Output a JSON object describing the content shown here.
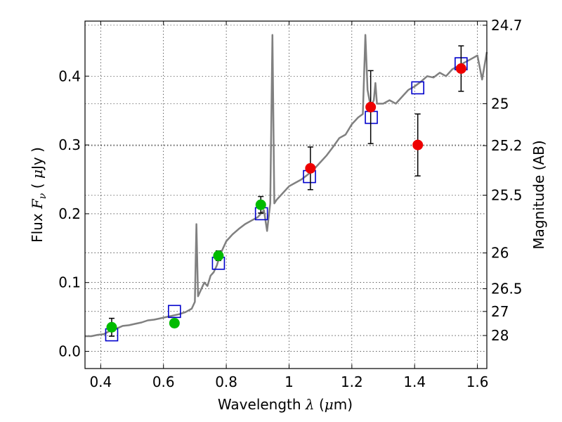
{
  "chart_data": {
    "type": "scatter",
    "xlabel": {
      "prefix": "Wavelength  ",
      "symbol": "λ",
      "mid": " (",
      "mu": "μ",
      "unit": "m)"
    },
    "ylabel": {
      "prefix": "Flux  ",
      "symbol": "F",
      "sub": "ν",
      "mid": "  ( ",
      "mu": "μ",
      "unit": "Jy )"
    },
    "y2label": "Magnitude (AB)",
    "xlim": [
      0.35,
      1.63
    ],
    "ylim": [
      -0.025,
      0.48
    ],
    "grid": true,
    "x_ticks": [
      0.4,
      0.6,
      0.8,
      1.0,
      1.2,
      1.4,
      1.6
    ],
    "x_tick_labels": [
      "0.4",
      "0.6",
      "0.8",
      "1",
      "1.2",
      "1.4",
      "1.6"
    ],
    "y_ticks": [
      0.0,
      0.1,
      0.2,
      0.3,
      0.4
    ],
    "y_tick_labels": [
      "0.0",
      "0.1",
      "0.2",
      "0.3",
      "0.4"
    ],
    "y2_ticks": [
      {
        "label": "24.7",
        "flux": 0.474
      },
      {
        "label": "25",
        "flux": 0.36
      },
      {
        "label": "25.2",
        "flux": 0.299
      },
      {
        "label": "25.5",
        "flux": 0.227
      },
      {
        "label": "26",
        "flux": 0.143
      },
      {
        "label": "26.5",
        "flux": 0.091
      },
      {
        "label": "27",
        "flux": 0.058
      },
      {
        "label": "28",
        "flux": 0.023
      }
    ],
    "template_spectrum": {
      "color": "#808080",
      "points": [
        [
          0.35,
          0.022
        ],
        [
          0.37,
          0.022
        ],
        [
          0.39,
          0.024
        ],
        [
          0.41,
          0.025
        ],
        [
          0.43,
          0.03
        ],
        [
          0.45,
          0.033
        ],
        [
          0.47,
          0.037
        ],
        [
          0.49,
          0.038
        ],
        [
          0.51,
          0.04
        ],
        [
          0.53,
          0.042
        ],
        [
          0.55,
          0.045
        ],
        [
          0.57,
          0.046
        ],
        [
          0.59,
          0.048
        ],
        [
          0.61,
          0.05
        ],
        [
          0.63,
          0.052
        ],
        [
          0.65,
          0.054
        ],
        [
          0.67,
          0.057
        ],
        [
          0.69,
          0.062
        ],
        [
          0.7,
          0.072
        ],
        [
          0.705,
          0.185
        ],
        [
          0.71,
          0.08
        ],
        [
          0.72,
          0.09
        ],
        [
          0.73,
          0.1
        ],
        [
          0.74,
          0.095
        ],
        [
          0.75,
          0.11
        ],
        [
          0.76,
          0.115
        ],
        [
          0.77,
          0.125
        ],
        [
          0.78,
          0.14
        ],
        [
          0.79,
          0.15
        ],
        [
          0.8,
          0.16
        ],
        [
          0.82,
          0.17
        ],
        [
          0.84,
          0.178
        ],
        [
          0.86,
          0.185
        ],
        [
          0.88,
          0.19
        ],
        [
          0.9,
          0.195
        ],
        [
          0.92,
          0.205
        ],
        [
          0.93,
          0.175
        ],
        [
          0.94,
          0.215
        ],
        [
          0.947,
          0.46
        ],
        [
          0.953,
          0.215
        ],
        [
          0.96,
          0.22
        ],
        [
          0.98,
          0.23
        ],
        [
          1.0,
          0.24
        ],
        [
          1.02,
          0.245
        ],
        [
          1.04,
          0.25
        ],
        [
          1.06,
          0.257
        ],
        [
          1.08,
          0.265
        ],
        [
          1.1,
          0.275
        ],
        [
          1.12,
          0.285
        ],
        [
          1.14,
          0.297
        ],
        [
          1.16,
          0.31
        ],
        [
          1.18,
          0.315
        ],
        [
          1.2,
          0.33
        ],
        [
          1.22,
          0.34
        ],
        [
          1.235,
          0.345
        ],
        [
          1.243,
          0.46
        ],
        [
          1.25,
          0.38
        ],
        [
          1.26,
          0.355
        ],
        [
          1.27,
          0.365
        ],
        [
          1.275,
          0.39
        ],
        [
          1.28,
          0.36
        ],
        [
          1.3,
          0.36
        ],
        [
          1.32,
          0.365
        ],
        [
          1.34,
          0.36
        ],
        [
          1.36,
          0.37
        ],
        [
          1.38,
          0.38
        ],
        [
          1.4,
          0.385
        ],
        [
          1.42,
          0.392
        ],
        [
          1.44,
          0.4
        ],
        [
          1.46,
          0.398
        ],
        [
          1.48,
          0.405
        ],
        [
          1.5,
          0.4
        ],
        [
          1.52,
          0.41
        ],
        [
          1.54,
          0.415
        ],
        [
          1.56,
          0.42
        ],
        [
          1.58,
          0.425
        ],
        [
          1.6,
          0.43
        ],
        [
          1.615,
          0.395
        ],
        [
          1.63,
          0.435
        ]
      ]
    },
    "model_photometry": {
      "marker": "open-square",
      "color": "#0000cc",
      "points": [
        [
          0.435,
          0.024
        ],
        [
          0.635,
          0.058
        ],
        [
          0.775,
          0.128
        ],
        [
          0.912,
          0.2
        ],
        [
          1.065,
          0.254
        ],
        [
          1.262,
          0.34
        ],
        [
          1.41,
          0.383
        ],
        [
          1.548,
          0.418
        ]
      ]
    },
    "observed_optical": {
      "marker": "filled-circle",
      "color": "#00bb00",
      "points": [
        {
          "x": 0.435,
          "y": 0.035,
          "err": 0.013
        },
        {
          "x": 0.635,
          "y": 0.041,
          "err": 0.006
        },
        {
          "x": 0.775,
          "y": 0.139,
          "err": 0.007
        },
        {
          "x": 0.91,
          "y": 0.213,
          "err": 0.012
        }
      ]
    },
    "observed_nir": {
      "marker": "filled-circle",
      "color": "#ee0000",
      "points": [
        {
          "x": 1.068,
          "y": 0.266,
          "err": 0.031
        },
        {
          "x": 1.26,
          "y": 0.355,
          "err": 0.053
        },
        {
          "x": 1.41,
          "y": 0.3,
          "err": 0.045
        },
        {
          "x": 1.548,
          "y": 0.411,
          "err": 0.033
        }
      ]
    }
  }
}
